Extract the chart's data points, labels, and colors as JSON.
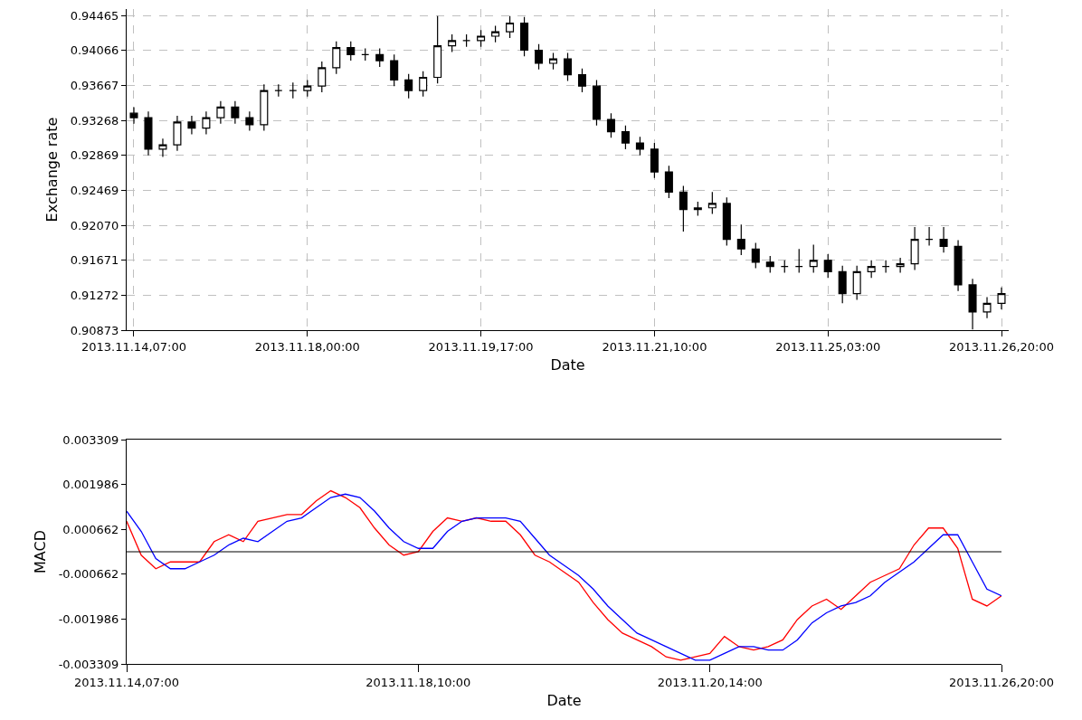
{
  "chart_data": [
    {
      "type": "candlestick",
      "xlabel": "Date",
      "ylabel": "Exchange rate",
      "color": "#000000",
      "grid": true,
      "categories": [
        "2013.11.14,07:00",
        null,
        null,
        null,
        null,
        null,
        null,
        null,
        null,
        null,
        null,
        null,
        "2013.11.18,00:00",
        null,
        null,
        null,
        null,
        null,
        null,
        null,
        null,
        null,
        null,
        null,
        "2013.11.19,17:00",
        null,
        null,
        null,
        null,
        null,
        null,
        null,
        null,
        null,
        null,
        null,
        "2013.11.21,10:00",
        null,
        null,
        null,
        null,
        null,
        null,
        null,
        null,
        null,
        null,
        null,
        "2013.11.25,03:00",
        null,
        null,
        null,
        null,
        null,
        null,
        null,
        null,
        null,
        null,
        null,
        "2013.11.26,20:00"
      ],
      "ylim": [
        0.90873,
        0.9454
      ],
      "yticks": [
        0.90873,
        0.91272,
        0.91671,
        {
          "value": 0.9207,
          "label": "0.92070"
        },
        0.92469,
        0.92869,
        0.93268,
        0.93667,
        0.94066,
        0.94465
      ],
      "ohlc": [
        [
          0.9335,
          0.9342,
          0.9323,
          0.933
        ],
        [
          0.933,
          0.9337,
          0.9287,
          0.9294
        ],
        [
          0.9294,
          0.9306,
          0.9285,
          0.9299
        ],
        [
          0.9299,
          0.9332,
          0.9292,
          0.9325
        ],
        [
          0.9325,
          0.9332,
          0.9311,
          0.9318
        ],
        [
          0.9318,
          0.9337,
          0.9311,
          0.933
        ],
        [
          0.933,
          0.9349,
          0.9323,
          0.9342
        ],
        [
          0.9342,
          0.9349,
          0.9323,
          0.933
        ],
        [
          0.933,
          0.9337,
          0.9315,
          0.9322
        ],
        [
          0.9322,
          0.9368,
          0.9315,
          0.9361
        ],
        [
          0.9361,
          0.9368,
          0.9354,
          0.9361
        ],
        [
          0.9361,
          0.937,
          0.9352,
          0.9361
        ],
        [
          0.9361,
          0.9373,
          0.9354,
          0.9366
        ],
        [
          0.9366,
          0.9394,
          0.9359,
          0.9387
        ],
        [
          0.9387,
          0.9417,
          0.938,
          0.941
        ],
        [
          0.941,
          0.9417,
          0.9395,
          0.9402
        ],
        [
          0.9402,
          0.9409,
          0.9395,
          0.9402
        ],
        [
          0.9402,
          0.9409,
          0.9388,
          0.9395
        ],
        [
          0.9395,
          0.9402,
          0.9366,
          0.9373
        ],
        [
          0.9373,
          0.938,
          0.9352,
          0.9361
        ],
        [
          0.9361,
          0.9383,
          0.9354,
          0.9376
        ],
        [
          0.9376,
          0.9446,
          0.9369,
          0.9412
        ],
        [
          0.9412,
          0.9425,
          0.9405,
          0.9418
        ],
        [
          0.9418,
          0.9425,
          0.9411,
          0.9418
        ],
        [
          0.9418,
          0.943,
          0.9411,
          0.9423
        ],
        [
          0.9423,
          0.9435,
          0.9416,
          0.9428
        ],
        [
          0.9428,
          0.9446,
          0.9421,
          0.9438
        ],
        [
          0.9438,
          0.9445,
          0.94,
          0.9407
        ],
        [
          0.9407,
          0.9414,
          0.9385,
          0.9392
        ],
        [
          0.9392,
          0.9404,
          0.9385,
          0.9397
        ],
        [
          0.9397,
          0.9404,
          0.9372,
          0.9379
        ],
        [
          0.9379,
          0.9386,
          0.9359,
          0.9366
        ],
        [
          0.9366,
          0.9373,
          0.9321,
          0.9328
        ],
        [
          0.9328,
          0.9335,
          0.9307,
          0.9314
        ],
        [
          0.9314,
          0.9321,
          0.9294,
          0.9301
        ],
        [
          0.9301,
          0.9308,
          0.9287,
          0.9294
        ],
        [
          0.9294,
          0.9301,
          0.9261,
          0.9268
        ],
        [
          0.9268,
          0.9275,
          0.9238,
          0.9245
        ],
        [
          0.9245,
          0.9252,
          0.92,
          0.9225
        ],
        [
          0.9225,
          0.9234,
          0.9218,
          0.9227
        ],
        [
          0.9227,
          0.9245,
          0.922,
          0.9232
        ],
        [
          0.9232,
          0.9239,
          0.9184,
          0.9191
        ],
        [
          0.9191,
          0.9208,
          0.9173,
          0.918
        ],
        [
          0.918,
          0.9187,
          0.9158,
          0.9165
        ],
        [
          0.9165,
          0.9172,
          0.9153,
          0.916
        ],
        [
          0.916,
          0.9167,
          0.9153,
          0.916
        ],
        [
          0.916,
          0.918,
          0.9153,
          0.916
        ],
        [
          0.916,
          0.9185,
          0.9153,
          0.9167
        ],
        [
          0.9167,
          0.9174,
          0.9147,
          0.9154
        ],
        [
          0.9154,
          0.9161,
          0.9118,
          0.9129
        ],
        [
          0.9129,
          0.9161,
          0.9122,
          0.9154
        ],
        [
          0.9154,
          0.9167,
          0.9147,
          0.916
        ],
        [
          0.916,
          0.9167,
          0.9153,
          0.916
        ],
        [
          0.916,
          0.917,
          0.9153,
          0.9163
        ],
        [
          0.9163,
          0.9205,
          0.9156,
          0.9191
        ],
        [
          0.9191,
          0.9205,
          0.9184,
          0.9191
        ],
        [
          0.9191,
          0.9205,
          0.9176,
          0.9183
        ],
        [
          0.9183,
          0.919,
          0.9132,
          0.9139
        ],
        [
          0.9139,
          0.9146,
          0.9088,
          0.9108
        ],
        [
          0.9108,
          0.9125,
          0.9101,
          0.9118
        ],
        [
          0.9118,
          0.9136,
          0.9111,
          0.9129
        ]
      ]
    },
    {
      "type": "line",
      "xlabel": "Date",
      "ylabel": "MACD",
      "grid": false,
      "categories": [
        "2013.11.14,07:00",
        null,
        null,
        null,
        null,
        null,
        null,
        null,
        null,
        null,
        null,
        null,
        null,
        null,
        null,
        null,
        null,
        null,
        null,
        null,
        "2013.11.18,10:00",
        null,
        null,
        null,
        null,
        null,
        null,
        null,
        null,
        null,
        null,
        null,
        null,
        null,
        null,
        null,
        null,
        null,
        null,
        null,
        "2013.11.20,14:00",
        null,
        null,
        null,
        null,
        null,
        null,
        null,
        null,
        null,
        null,
        null,
        null,
        null,
        null,
        null,
        null,
        null,
        null,
        null,
        "2013.11.26,20:00"
      ],
      "ylim": [
        -0.003309,
        0.003309
      ],
      "yticks": [
        -0.003309,
        -0.001986,
        -0.000662,
        0.000662,
        0.001986,
        0.003309
      ],
      "ref_lines": [
        {
          "axis": "y",
          "value": 0,
          "color": "#000000"
        }
      ],
      "series": [
        {
          "color": "#ff0000",
          "values": [
            0.0009,
            -0.0001,
            -0.0005,
            -0.0003,
            -0.0003,
            -0.0003,
            0.0003,
            0.0005,
            0.0003,
            0.0009,
            0.001,
            0.0011,
            0.0011,
            0.0015,
            0.0018,
            0.0016,
            0.0013,
            0.0007,
            0.0002,
            -0.0001,
            0.0,
            0.0006,
            0.001,
            0.0009,
            0.001,
            0.0009,
            0.0009,
            0.0005,
            -0.0001,
            -0.0003,
            -0.0006,
            -0.0009,
            -0.0015,
            -0.002,
            -0.0024,
            -0.0026,
            -0.0028,
            -0.0031,
            -0.0032,
            -0.0031,
            -0.003,
            -0.0025,
            -0.0028,
            -0.0029,
            -0.0028,
            -0.0026,
            -0.002,
            -0.0016,
            -0.0014,
            -0.0017,
            -0.0013,
            -0.0009,
            -0.0007,
            -0.0005,
            0.0002,
            0.0007,
            0.0007,
            0.0001,
            -0.0014,
            -0.0016,
            -0.0013
          ]
        },
        {
          "color": "#0000ff",
          "values": [
            0.0012,
            0.0006,
            -0.0002,
            -0.0005,
            -0.0005,
            -0.0003,
            -0.0001,
            0.0002,
            0.0004,
            0.0003,
            0.0006,
            0.0009,
            0.001,
            0.0013,
            0.0016,
            0.0017,
            0.0016,
            0.0012,
            0.0007,
            0.0003,
            0.0001,
            0.0001,
            0.0006,
            0.0009,
            0.001,
            0.001,
            0.001,
            0.0009,
            0.0004,
            -0.0001,
            -0.0004,
            -0.0007,
            -0.0011,
            -0.0016,
            -0.002,
            -0.0024,
            -0.0026,
            -0.0028,
            -0.003,
            -0.0032,
            -0.0032,
            -0.003,
            -0.0028,
            -0.0028,
            -0.0029,
            -0.0029,
            -0.0026,
            -0.0021,
            -0.0018,
            -0.0016,
            -0.0015,
            -0.0013,
            -0.0009,
            -0.0006,
            -0.0003,
            0.0001,
            0.0005,
            0.0005,
            -0.0003,
            -0.0011,
            -0.0013
          ]
        }
      ]
    }
  ]
}
